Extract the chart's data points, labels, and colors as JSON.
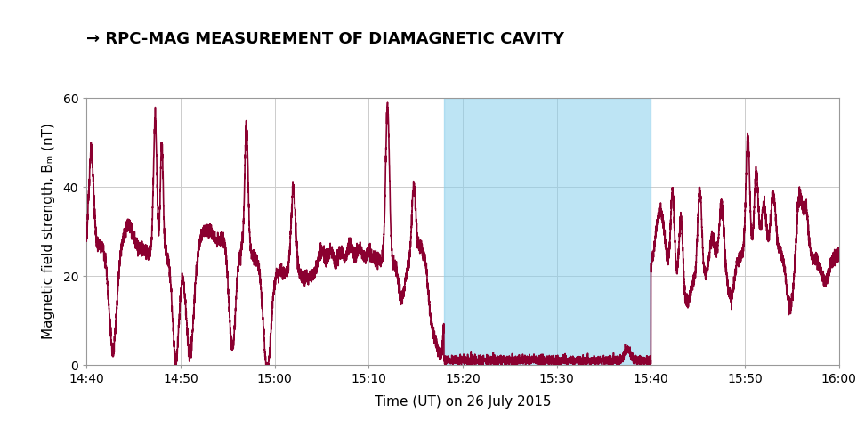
{
  "title": "→ RPC-MAG MEASUREMENT OF DIAMAGNETIC CAVITY",
  "xlabel": "Time (UT) on 26 July 2015",
  "ylabel": "Magnetic field strength, Bₘ (nT)",
  "ylim": [
    0,
    60
  ],
  "yticks": [
    0,
    20,
    40,
    60
  ],
  "x_start_min": 0,
  "x_end_min": 80,
  "cavity_start_min": 38,
  "cavity_end_min": 60,
  "xtick_labels": [
    "14:40",
    "14:50",
    "15:00",
    "15:10",
    "15:20",
    "15:30",
    "15:40",
    "15:50",
    "16:00"
  ],
  "xtick_positions": [
    0,
    10,
    20,
    30,
    40,
    50,
    60,
    70,
    80
  ],
  "line_color": "#8B0030",
  "cavity_color": "#87CEEB",
  "cavity_alpha": 0.55,
  "background_color": "#ffffff",
  "grid_color": "#cccccc",
  "title_fontsize": 13,
  "label_fontsize": 11,
  "tick_fontsize": 10
}
